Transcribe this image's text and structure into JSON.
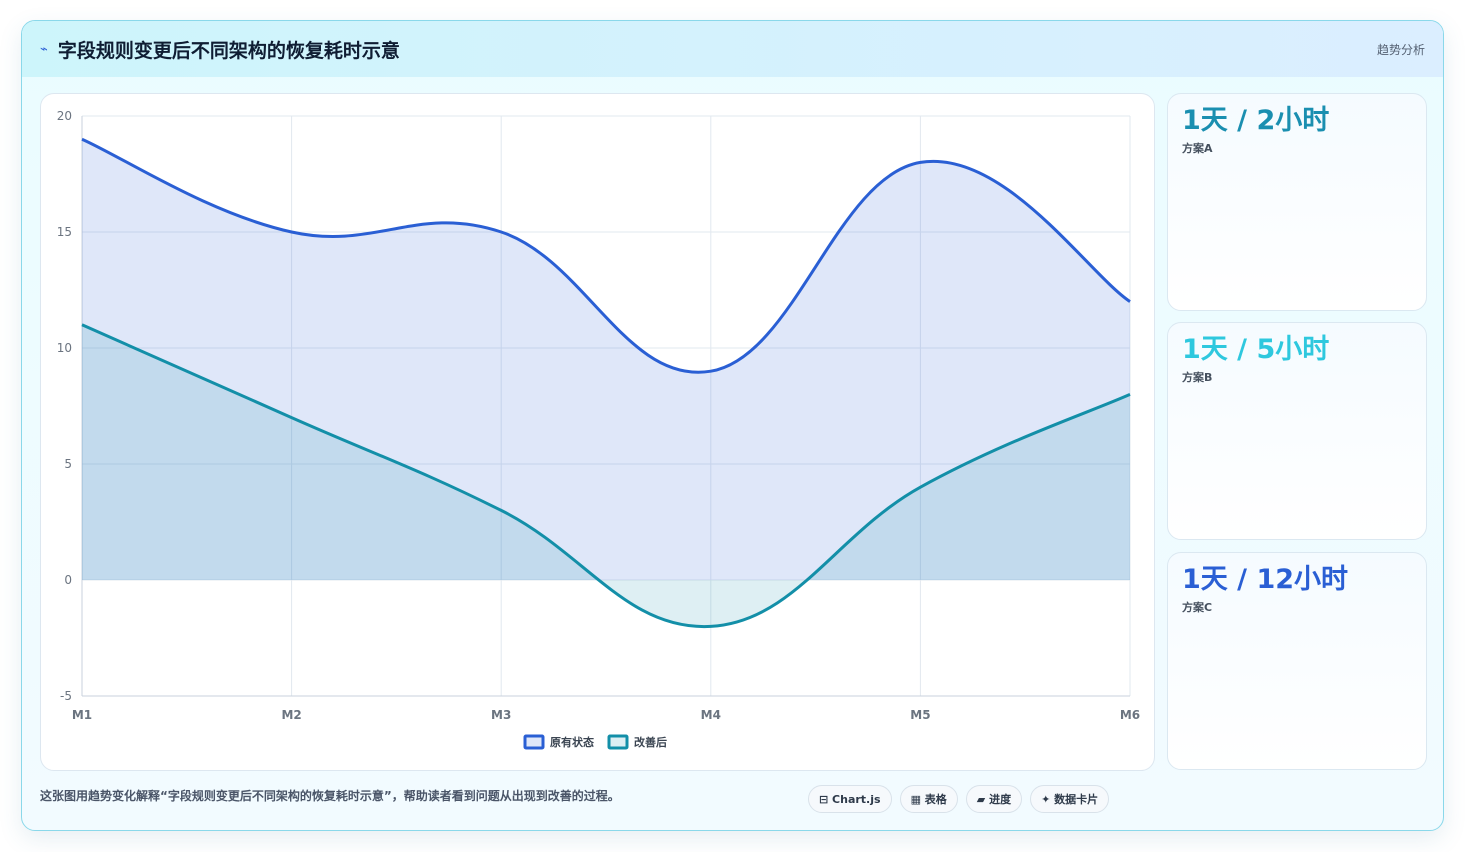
{
  "header": {
    "icon": "⌁",
    "title": "字段规则变更后不同架构的恢复耗时示意",
    "tag": "趋势分析"
  },
  "stats": [
    {
      "value": "1天 / 2小时",
      "label": "方案A",
      "color": "#1a8fb0"
    },
    {
      "value": "1天 / 5小时",
      "label": "方案B",
      "color": "#2ec8de"
    },
    {
      "value": "1天 / 12小时",
      "label": "方案C",
      "color": "#2a5fd4"
    }
  ],
  "footer": {
    "caption": "这张图用趋势变化解释“字段规则变更后不同架构的恢复耗时示意”，帮助读者看到问题从出现到改善的过程。",
    "chips": [
      "⊟ Chart.js",
      "▦ 表格",
      "▰ 进度",
      "✦ 数据卡片"
    ]
  },
  "chart_data": {
    "type": "area",
    "x": [
      "M1",
      "M2",
      "M3",
      "M4",
      "M5",
      "M6"
    ],
    "ylim": [
      -5,
      20
    ],
    "yticks": [
      -5,
      0,
      5,
      10,
      15,
      20
    ],
    "grid": true,
    "legend_position": "bottom",
    "series": [
      {
        "name": "原有状态",
        "values": [
          19,
          15,
          15,
          9,
          18,
          12
        ],
        "color": "#2a5fd4",
        "fill": "rgba(42,95,212,0.15)"
      },
      {
        "name": "改善后",
        "values": [
          11,
          7,
          3,
          -2,
          4,
          8
        ],
        "color": "#138fa8",
        "fill": "rgba(19,143,168,0.14)"
      }
    ]
  }
}
